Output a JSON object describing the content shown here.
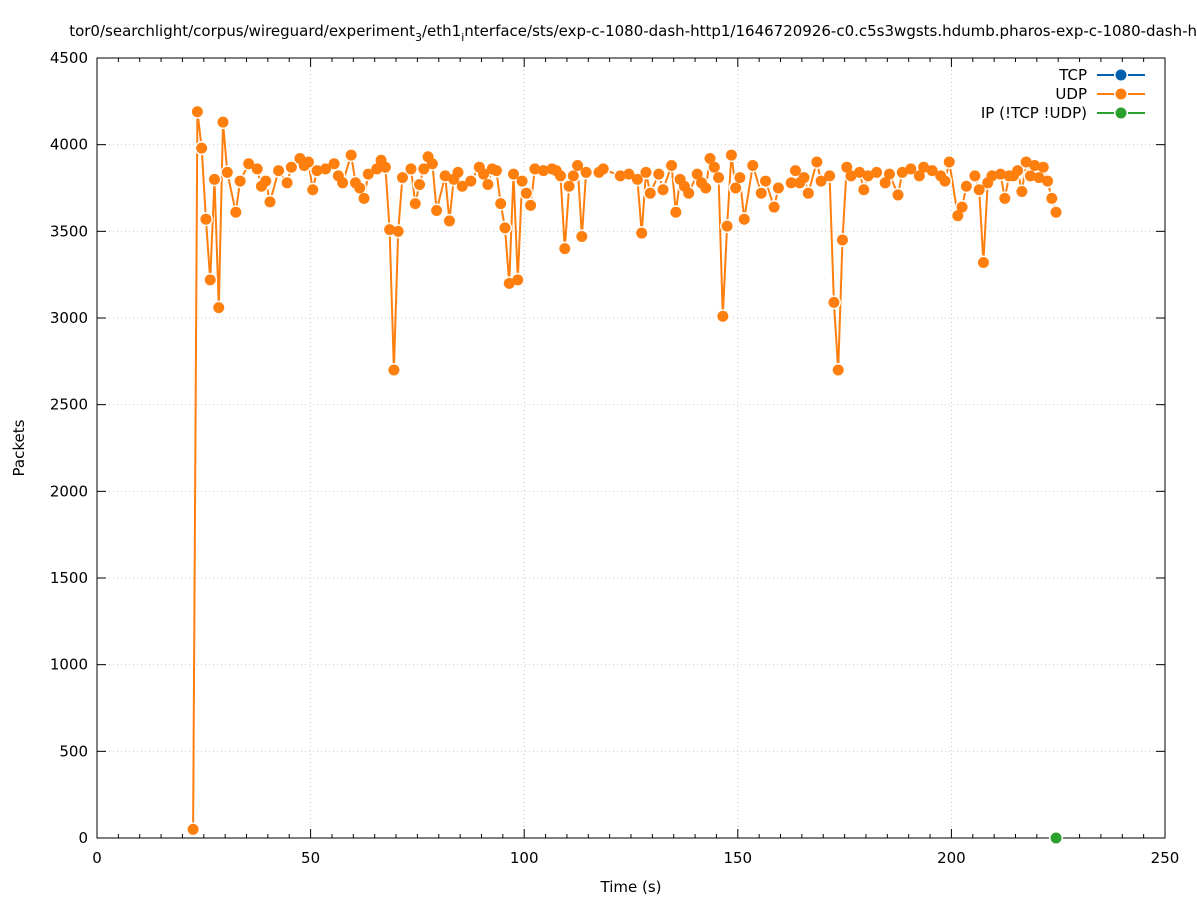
{
  "chart_data": {
    "type": "line",
    "title": "tor0/searchlight/corpus/wireguard/experiment",
    "title_sub": "3",
    "title_rest": "/eth1",
    "title_sub2": "i",
    "title_rest2": "nterface/sts/exp-c-1080-dash-http1/1646720926-c0.c5s3wgsts.hdumb.pharos-exp-c-1080-dash-h",
    "xlabel": "Time (s)",
    "ylabel": "Packets",
    "xlim": [
      0,
      250
    ],
    "ylim": [
      0,
      4500
    ],
    "xticks": [
      0,
      50,
      100,
      150,
      200,
      250
    ],
    "yticks": [
      0,
      500,
      1000,
      1500,
      2000,
      2500,
      3000,
      3500,
      4000,
      4500
    ],
    "grid": true,
    "legend_position": "top-right",
    "series": [
      {
        "name": "TCP",
        "color": "#0060ad",
        "points": []
      },
      {
        "name": "UDP",
        "color": "#ff7f0e",
        "points": [
          [
            22.5,
            50
          ],
          [
            23.5,
            4190
          ],
          [
            24.5,
            3980
          ],
          [
            25.5,
            3570
          ],
          [
            26.5,
            3220
          ],
          [
            27.5,
            3800
          ],
          [
            28.5,
            3060
          ],
          [
            29.5,
            4130
          ],
          [
            30.5,
            3840
          ],
          [
            32.5,
            3610
          ],
          [
            33.5,
            3790
          ],
          [
            35.5,
            3890
          ],
          [
            37.5,
            3860
          ],
          [
            38.5,
            3760
          ],
          [
            39.5,
            3790
          ],
          [
            40.5,
            3670
          ],
          [
            42.5,
            3850
          ],
          [
            44.5,
            3780
          ],
          [
            45.5,
            3870
          ],
          [
            47.5,
            3920
          ],
          [
            48.5,
            3880
          ],
          [
            49.5,
            3900
          ],
          [
            50.5,
            3740
          ],
          [
            51.5,
            3850
          ],
          [
            53.5,
            3860
          ],
          [
            55.5,
            3890
          ],
          [
            56.5,
            3820
          ],
          [
            57.5,
            3780
          ],
          [
            59.5,
            3940
          ],
          [
            60.5,
            3780
          ],
          [
            61.5,
            3750
          ],
          [
            62.5,
            3690
          ],
          [
            63.5,
            3830
          ],
          [
            65.5,
            3860
          ],
          [
            66.5,
            3910
          ],
          [
            67.5,
            3870
          ],
          [
            68.5,
            3510
          ],
          [
            69.5,
            2700
          ],
          [
            70.5,
            3500
          ],
          [
            71.5,
            3810
          ],
          [
            73.5,
            3860
          ],
          [
            74.5,
            3660
          ],
          [
            75.5,
            3770
          ],
          [
            76.5,
            3860
          ],
          [
            77.5,
            3930
          ],
          [
            78.5,
            3890
          ],
          [
            79.5,
            3620
          ],
          [
            81.5,
            3820
          ],
          [
            82.5,
            3560
          ],
          [
            83.5,
            3800
          ],
          [
            84.5,
            3840
          ],
          [
            85.5,
            3760
          ],
          [
            87.5,
            3790
          ],
          [
            89.5,
            3870
          ],
          [
            90.5,
            3830
          ],
          [
            91.5,
            3770
          ],
          [
            92.5,
            3860
          ],
          [
            93.5,
            3850
          ],
          [
            94.5,
            3660
          ],
          [
            95.5,
            3520
          ],
          [
            96.5,
            3200
          ],
          [
            97.5,
            3830
          ],
          [
            98.5,
            3220
          ],
          [
            99.5,
            3790
          ],
          [
            100.5,
            3720
          ],
          [
            101.5,
            3650
          ],
          [
            102.5,
            3860
          ],
          [
            104.5,
            3850
          ],
          [
            106.5,
            3860
          ],
          [
            107.5,
            3850
          ],
          [
            108.5,
            3820
          ],
          [
            109.5,
            3400
          ],
          [
            110.5,
            3760
          ],
          [
            111.5,
            3820
          ],
          [
            112.5,
            3880
          ],
          [
            113.5,
            3470
          ],
          [
            114.5,
            3840
          ],
          [
            117.5,
            3840
          ],
          [
            118.5,
            3860
          ],
          [
            122.5,
            3820
          ],
          [
            124.5,
            3830
          ],
          [
            126.5,
            3800
          ],
          [
            127.5,
            3490
          ],
          [
            128.5,
            3840
          ],
          [
            129.5,
            3720
          ],
          [
            131.5,
            3830
          ],
          [
            132.5,
            3740
          ],
          [
            134.5,
            3880
          ],
          [
            135.5,
            3610
          ],
          [
            136.5,
            3800
          ],
          [
            137.5,
            3760
          ],
          [
            138.5,
            3720
          ],
          [
            140.5,
            3830
          ],
          [
            141.5,
            3780
          ],
          [
            142.5,
            3750
          ],
          [
            143.5,
            3920
          ],
          [
            144.5,
            3870
          ],
          [
            145.5,
            3810
          ],
          [
            146.5,
            3010
          ],
          [
            147.5,
            3530
          ],
          [
            148.5,
            3940
          ],
          [
            149.5,
            3750
          ],
          [
            150.5,
            3810
          ],
          [
            151.5,
            3570
          ],
          [
            153.5,
            3880
          ],
          [
            155.5,
            3720
          ],
          [
            156.5,
            3790
          ],
          [
            158.5,
            3640
          ],
          [
            159.5,
            3750
          ],
          [
            162.5,
            3780
          ],
          [
            163.5,
            3850
          ],
          [
            164.5,
            3780
          ],
          [
            165.5,
            3810
          ],
          [
            166.5,
            3720
          ],
          [
            168.5,
            3900
          ],
          [
            169.5,
            3790
          ],
          [
            171.5,
            3820
          ],
          [
            172.5,
            3090
          ],
          [
            173.5,
            2700
          ],
          [
            174.5,
            3450
          ],
          [
            175.5,
            3870
          ],
          [
            176.5,
            3820
          ],
          [
            178.5,
            3840
          ],
          [
            179.5,
            3740
          ],
          [
            180.5,
            3820
          ],
          [
            182.5,
            3840
          ],
          [
            184.5,
            3780
          ],
          [
            185.5,
            3830
          ],
          [
            187.5,
            3710
          ],
          [
            188.5,
            3840
          ],
          [
            190.5,
            3860
          ],
          [
            192.5,
            3820
          ],
          [
            193.5,
            3870
          ],
          [
            195.5,
            3850
          ],
          [
            197.5,
            3820
          ],
          [
            198.5,
            3790
          ],
          [
            199.5,
            3900
          ],
          [
            201.5,
            3590
          ],
          [
            202.5,
            3640
          ],
          [
            203.5,
            3760
          ],
          [
            205.5,
            3820
          ],
          [
            206.5,
            3740
          ],
          [
            207.5,
            3320
          ],
          [
            208.5,
            3780
          ],
          [
            209.5,
            3820
          ],
          [
            211.5,
            3830
          ],
          [
            212.5,
            3690
          ],
          [
            213.5,
            3820
          ],
          [
            214.5,
            3820
          ],
          [
            215.5,
            3850
          ],
          [
            216.5,
            3730
          ],
          [
            217.5,
            3900
          ],
          [
            218.5,
            3820
          ],
          [
            219.5,
            3880
          ],
          [
            220.5,
            3810
          ],
          [
            221.5,
            3870
          ],
          [
            222.5,
            3790
          ],
          [
            223.5,
            3690
          ],
          [
            224.5,
            3610
          ]
        ]
      },
      {
        "name": "IP (!TCP  !UDP)",
        "color": "#2ca02c",
        "points": [
          [
            224.5,
            0
          ]
        ]
      }
    ]
  }
}
